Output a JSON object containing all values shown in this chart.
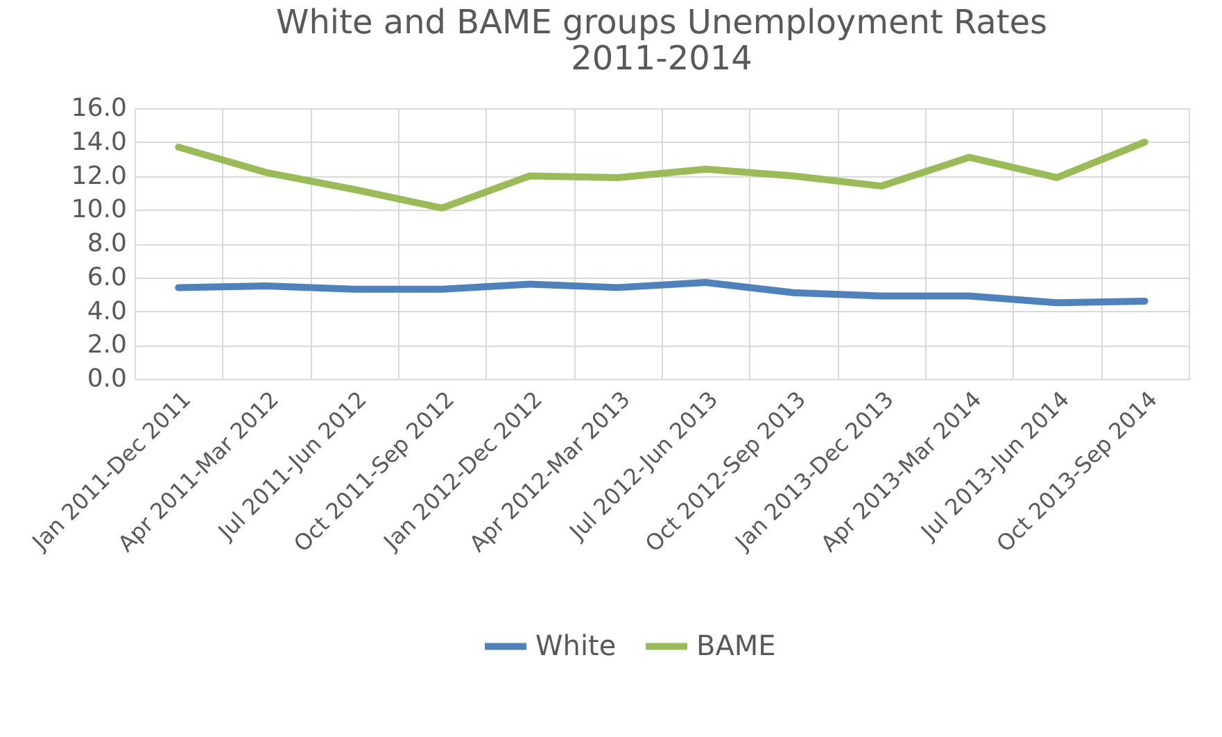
{
  "chart_data": {
    "type": "line",
    "title": [
      "White and BAME groups Unemployment Rates",
      "2011-2014"
    ],
    "categories": [
      "Jan 2011-Dec 2011",
      "Apr 2011-Mar 2012",
      "Jul 2011-Jun 2012",
      "Oct 2011-Sep 2012",
      "Jan 2012-Dec 2012",
      "Apr 2012-Mar 2013",
      "Jul 2012-Jun 2013",
      "Oct 2012-Sep 2013",
      "Jan 2013-Dec 2013",
      "Apr 2013-Mar 2014",
      "Jul 2013-Jun 2014",
      "Oct 2013-Sep 2014"
    ],
    "series": [
      {
        "name": "White",
        "color": "#4f81bd",
        "values": [
          5.4,
          5.5,
          5.3,
          5.3,
          5.6,
          5.4,
          5.7,
          5.1,
          4.9,
          4.9,
          4.5,
          4.6
        ]
      },
      {
        "name": "BAME",
        "color": "#9bbb59",
        "values": [
          13.7,
          12.2,
          11.2,
          10.1,
          12.0,
          11.9,
          12.4,
          12.0,
          11.4,
          13.1,
          11.9,
          14.0
        ]
      }
    ],
    "ylim": [
      0,
      16
    ],
    "yticks": [
      {
        "value": 0,
        "label": "0.0"
      },
      {
        "value": 2,
        "label": "2.0"
      },
      {
        "value": 4,
        "label": "4.0"
      },
      {
        "value": 6,
        "label": "6.0"
      },
      {
        "value": 8,
        "label": "8.0"
      },
      {
        "value": 10,
        "label": "10.0"
      },
      {
        "value": 12,
        "label": "12.0"
      },
      {
        "value": 14,
        "label": "14.0"
      },
      {
        "value": 16,
        "label": "16.0"
      }
    ],
    "grid": true,
    "legend": "bottom",
    "line_style": "solid",
    "marker": "none"
  }
}
